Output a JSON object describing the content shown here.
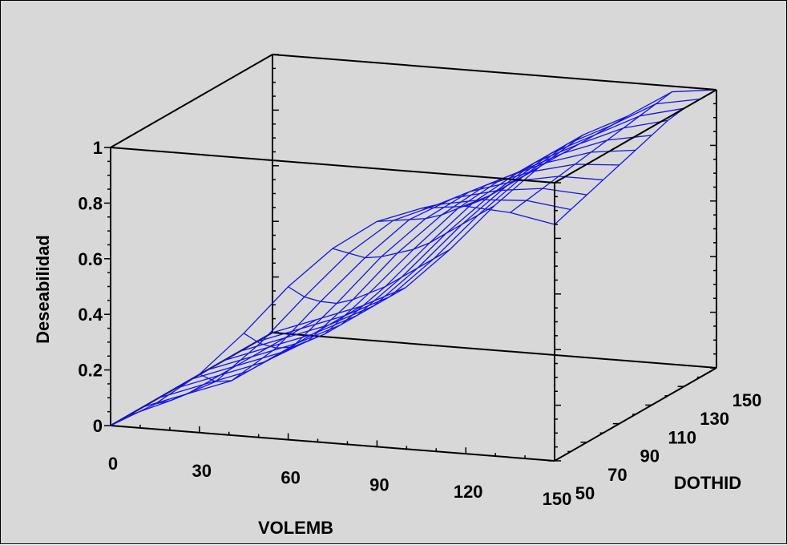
{
  "colors": {
    "background": "#d8d8d8",
    "mesh": "#1414e6",
    "box": "#000000"
  },
  "chart_data": {
    "type": "surface",
    "title": "",
    "xlabel": "VOLEMB",
    "ylabel": "DOTHID",
    "zlabel": "Deseabilidad",
    "x_ticks": [
      "0",
      "30",
      "60",
      "90",
      "120",
      "150"
    ],
    "y_ticks": [
      "50",
      "70",
      "90",
      "110",
      "130",
      "150"
    ],
    "z_ticks": [
      "0",
      "0.2",
      "0.4",
      "0.6",
      "0.8",
      "1"
    ],
    "xlim": [
      0,
      150
    ],
    "ylim": [
      50,
      150
    ],
    "zlim": [
      0,
      1
    ],
    "grid_x": [
      0,
      15,
      30,
      45,
      60,
      75,
      90,
      105,
      120,
      135,
      150
    ],
    "grid_y": [
      50,
      60,
      70,
      80,
      90,
      100,
      110,
      120,
      130,
      140,
      150
    ],
    "z": [
      [
        0.0,
        0.0,
        0.0,
        0.0,
        0.0,
        0.0,
        0.0,
        0.0,
        0.0,
        0.0,
        0.0
      ],
      [
        0.09,
        0.07,
        0.06,
        0.06,
        0.06,
        0.06,
        0.06,
        0.06,
        0.06,
        0.06,
        0.06
      ],
      [
        0.21,
        0.15,
        0.12,
        0.12,
        0.12,
        0.12,
        0.12,
        0.12,
        0.12,
        0.12,
        0.12
      ],
      [
        0.37,
        0.3,
        0.25,
        0.22,
        0.21,
        0.2,
        0.2,
        0.2,
        0.2,
        0.2,
        0.2
      ],
      [
        0.55,
        0.48,
        0.43,
        0.39,
        0.37,
        0.36,
        0.35,
        0.35,
        0.35,
        0.35,
        0.35
      ],
      [
        0.7,
        0.65,
        0.6,
        0.57,
        0.55,
        0.53,
        0.52,
        0.52,
        0.52,
        0.52,
        0.52
      ],
      [
        0.81,
        0.78,
        0.75,
        0.72,
        0.7,
        0.69,
        0.68,
        0.67,
        0.67,
        0.67,
        0.67
      ],
      [
        0.87,
        0.85,
        0.84,
        0.83,
        0.82,
        0.81,
        0.8,
        0.8,
        0.8,
        0.8,
        0.8
      ],
      [
        0.89,
        0.88,
        0.88,
        0.88,
        0.88,
        0.88,
        0.88,
        0.88,
        0.88,
        0.88,
        0.88
      ],
      [
        0.88,
        0.89,
        0.9,
        0.91,
        0.92,
        0.93,
        0.94,
        0.95,
        0.96,
        0.97,
        0.98
      ],
      [
        0.85,
        0.87,
        0.89,
        0.91,
        0.93,
        0.95,
        0.97,
        0.99,
        1.0,
        1.0,
        1.0
      ]
    ],
    "grid": false,
    "legend": "none"
  }
}
